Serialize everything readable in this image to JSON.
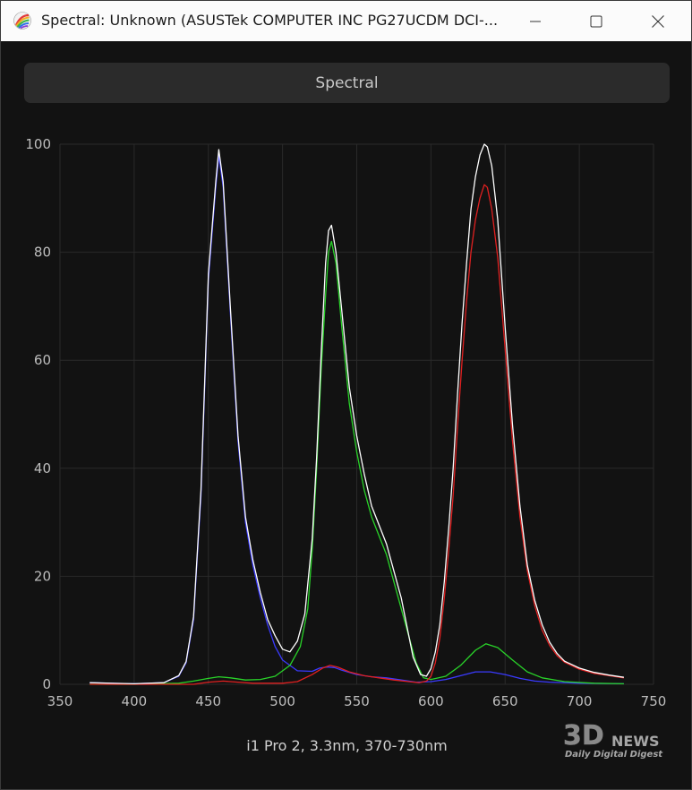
{
  "window": {
    "title": "Spectral: Unknown (ASUSTek COMPUTER INC PG27UCDM DCI-...",
    "tab_label": "Spectral",
    "caption": "i1 Pro 2, 3.3nm, 370-730nm",
    "watermark": {
      "brand": "3DNEWS",
      "tagline": "Daily Digital Digest"
    }
  },
  "icons": {
    "app": "colorful-app-icon",
    "minimize": "minimize-icon",
    "maximize": "maximize-icon",
    "close": "close-icon"
  },
  "colors": {
    "background": "#121212",
    "grid": "#2a2a2a",
    "axis_text": "#bdbdbd"
  },
  "chart_data": {
    "type": "line",
    "title": "",
    "xlabel": "",
    "ylabel": "",
    "xlim": [
      350,
      750
    ],
    "ylim": [
      0,
      100
    ],
    "x_ticks": [
      350,
      400,
      450,
      500,
      550,
      600,
      650,
      700,
      750
    ],
    "y_ticks": [
      0,
      20,
      40,
      60,
      80,
      100
    ],
    "grid": true,
    "series": [
      {
        "color": "#3a3aff",
        "points": [
          [
            370,
            0.3
          ],
          [
            400,
            0.1
          ],
          [
            420,
            0.3
          ],
          [
            430,
            1.5
          ],
          [
            435,
            4
          ],
          [
            440,
            12
          ],
          [
            445,
            35
          ],
          [
            450,
            75
          ],
          [
            455,
            92
          ],
          [
            457,
            98
          ],
          [
            460,
            92
          ],
          [
            465,
            68
          ],
          [
            470,
            45
          ],
          [
            475,
            30
          ],
          [
            480,
            22
          ],
          [
            485,
            16
          ],
          [
            490,
            11
          ],
          [
            495,
            7
          ],
          [
            500,
            4.5
          ],
          [
            510,
            2.5
          ],
          [
            520,
            2.4
          ],
          [
            525,
            3
          ],
          [
            530,
            3.2
          ],
          [
            535,
            3.1
          ],
          [
            540,
            2.6
          ],
          [
            550,
            1.8
          ],
          [
            560,
            1.4
          ],
          [
            570,
            1.2
          ],
          [
            580,
            0.8
          ],
          [
            590,
            0.4
          ],
          [
            600,
            0.5
          ],
          [
            610,
            0.9
          ],
          [
            620,
            1.6
          ],
          [
            630,
            2.3
          ],
          [
            640,
            2.3
          ],
          [
            650,
            1.8
          ],
          [
            660,
            1.1
          ],
          [
            670,
            0.6
          ],
          [
            680,
            0.4
          ],
          [
            700,
            0.2
          ],
          [
            730,
            0.1
          ]
        ]
      },
      {
        "color": "#29d329",
        "points": [
          [
            370,
            0
          ],
          [
            400,
            0
          ],
          [
            430,
            0.2
          ],
          [
            440,
            0.6
          ],
          [
            450,
            1.1
          ],
          [
            457,
            1.4
          ],
          [
            465,
            1.2
          ],
          [
            475,
            0.8
          ],
          [
            485,
            0.9
          ],
          [
            495,
            1.5
          ],
          [
            505,
            3.5
          ],
          [
            512,
            7
          ],
          [
            517,
            14
          ],
          [
            520,
            25
          ],
          [
            523,
            40
          ],
          [
            526,
            58
          ],
          [
            529,
            72
          ],
          [
            531,
            80
          ],
          [
            533,
            82
          ],
          [
            536,
            78
          ],
          [
            540,
            66
          ],
          [
            545,
            52
          ],
          [
            550,
            43
          ],
          [
            555,
            36
          ],
          [
            560,
            31
          ],
          [
            570,
            24
          ],
          [
            580,
            14
          ],
          [
            590,
            4
          ],
          [
            595,
            1.2
          ],
          [
            600,
            0.9
          ],
          [
            610,
            1.5
          ],
          [
            620,
            3.5
          ],
          [
            630,
            6.3
          ],
          [
            637,
            7.5
          ],
          [
            645,
            6.8
          ],
          [
            655,
            4.5
          ],
          [
            665,
            2.3
          ],
          [
            675,
            1.2
          ],
          [
            690,
            0.5
          ],
          [
            710,
            0.2
          ],
          [
            730,
            0.1
          ]
        ]
      },
      {
        "color": "#e02020",
        "points": [
          [
            370,
            0
          ],
          [
            440,
            0
          ],
          [
            450,
            0.4
          ],
          [
            460,
            0.6
          ],
          [
            470,
            0.4
          ],
          [
            480,
            0.2
          ],
          [
            500,
            0.2
          ],
          [
            510,
            0.5
          ],
          [
            520,
            1.8
          ],
          [
            527,
            3
          ],
          [
            532,
            3.5
          ],
          [
            537,
            3.2
          ],
          [
            545,
            2.3
          ],
          [
            555,
            1.6
          ],
          [
            565,
            1.2
          ],
          [
            575,
            0.8
          ],
          [
            585,
            0.5
          ],
          [
            592,
            0.3
          ],
          [
            597,
            0.6
          ],
          [
            600,
            1.5
          ],
          [
            603,
            4
          ],
          [
            606,
            8.5
          ],
          [
            609,
            16
          ],
          [
            612,
            25
          ],
          [
            615,
            35
          ],
          [
            618,
            48
          ],
          [
            621,
            60
          ],
          [
            624,
            71
          ],
          [
            627,
            80
          ],
          [
            630,
            86
          ],
          [
            633,
            90
          ],
          [
            636,
            92.5
          ],
          [
            638,
            92
          ],
          [
            641,
            88
          ],
          [
            645,
            79
          ],
          [
            650,
            62
          ],
          [
            655,
            45
          ],
          [
            660,
            31
          ],
          [
            665,
            21
          ],
          [
            670,
            14.5
          ],
          [
            675,
            10
          ],
          [
            680,
            7.2
          ],
          [
            685,
            5.3
          ],
          [
            690,
            4.1
          ],
          [
            700,
            2.8
          ],
          [
            710,
            2
          ],
          [
            720,
            1.6
          ],
          [
            730,
            1.2
          ]
        ]
      },
      {
        "color": "#ffffff",
        "points": [
          [
            370,
            0.3
          ],
          [
            400,
            0.1
          ],
          [
            420,
            0.3
          ],
          [
            430,
            1.6
          ],
          [
            435,
            4.2
          ],
          [
            440,
            12.5
          ],
          [
            445,
            36
          ],
          [
            450,
            76
          ],
          [
            455,
            93
          ],
          [
            457,
            99
          ],
          [
            460,
            93
          ],
          [
            465,
            69
          ],
          [
            470,
            46
          ],
          [
            475,
            31
          ],
          [
            480,
            23
          ],
          [
            485,
            17
          ],
          [
            490,
            12
          ],
          [
            495,
            9
          ],
          [
            500,
            6.5
          ],
          [
            505,
            6
          ],
          [
            510,
            8
          ],
          [
            515,
            13
          ],
          [
            520,
            27
          ],
          [
            523,
            42
          ],
          [
            526,
            61
          ],
          [
            529,
            78
          ],
          [
            531,
            84
          ],
          [
            533,
            85
          ],
          [
            536,
            80
          ],
          [
            540,
            69
          ],
          [
            545,
            55
          ],
          [
            550,
            46
          ],
          [
            555,
            39
          ],
          [
            560,
            33
          ],
          [
            570,
            26
          ],
          [
            580,
            16
          ],
          [
            588,
            5
          ],
          [
            593,
            1.8
          ],
          [
            597,
            1.5
          ],
          [
            600,
            2.9
          ],
          [
            603,
            6
          ],
          [
            606,
            11
          ],
          [
            609,
            19
          ],
          [
            612,
            29
          ],
          [
            615,
            40
          ],
          [
            618,
            54
          ],
          [
            621,
            67
          ],
          [
            624,
            78
          ],
          [
            627,
            88
          ],
          [
            630,
            94
          ],
          [
            633,
            98
          ],
          [
            636,
            100
          ],
          [
            638,
            99.5
          ],
          [
            641,
            96
          ],
          [
            645,
            86
          ],
          [
            650,
            66
          ],
          [
            655,
            48
          ],
          [
            660,
            33
          ],
          [
            665,
            22
          ],
          [
            670,
            15.5
          ],
          [
            675,
            11
          ],
          [
            680,
            7.8
          ],
          [
            685,
            5.7
          ],
          [
            690,
            4.3
          ],
          [
            700,
            3
          ],
          [
            710,
            2.2
          ],
          [
            720,
            1.7
          ],
          [
            730,
            1.3
          ]
        ]
      }
    ]
  }
}
